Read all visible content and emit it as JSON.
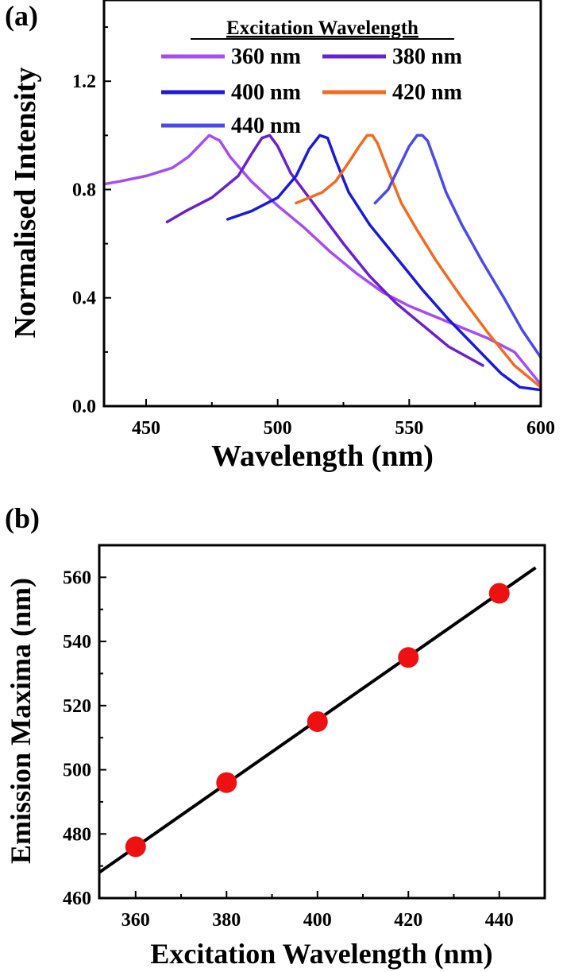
{
  "chart_data": [
    {
      "panel_label": "(a)",
      "type": "line",
      "xlabel": "Wavelength (nm)",
      "ylabel": "Normalised Intensity",
      "xlim": [
        434,
        600
      ],
      "ylim": [
        0.0,
        1.5
      ],
      "xticks": [
        "450",
        "500",
        "550",
        "600"
      ],
      "yticks": [
        "0.0",
        "0.4",
        "0.8",
        "1.2"
      ],
      "legend_title": "Excitation Wavelength",
      "series": [
        {
          "name": "360 nm",
          "color": "#a64df2",
          "x": [
            434,
            440,
            450,
            460,
            466,
            470,
            474,
            478,
            482,
            490,
            500,
            510,
            520,
            530,
            540,
            550,
            560,
            570,
            580,
            590,
            600
          ],
          "y": [
            0.82,
            0.83,
            0.85,
            0.88,
            0.92,
            0.96,
            1.0,
            0.98,
            0.92,
            0.83,
            0.74,
            0.66,
            0.57,
            0.49,
            0.42,
            0.37,
            0.33,
            0.29,
            0.25,
            0.2,
            0.08
          ]
        },
        {
          "name": "380 nm",
          "color": "#6a1fd0",
          "x": [
            458,
            465,
            475,
            485,
            490,
            494,
            497,
            500,
            505,
            515,
            525,
            535,
            545,
            555,
            565,
            578
          ],
          "y": [
            0.68,
            0.72,
            0.77,
            0.85,
            0.93,
            0.99,
            1.0,
            0.96,
            0.86,
            0.73,
            0.6,
            0.48,
            0.38,
            0.3,
            0.22,
            0.15
          ]
        },
        {
          "name": "400 nm",
          "color": "#1a1adb",
          "x": [
            481,
            490,
            500,
            507,
            512,
            516,
            519,
            522,
            527,
            535,
            545,
            555,
            565,
            575,
            585,
            592,
            600
          ],
          "y": [
            0.69,
            0.72,
            0.77,
            0.85,
            0.95,
            1.0,
            0.99,
            0.91,
            0.79,
            0.67,
            0.55,
            0.43,
            0.32,
            0.22,
            0.12,
            0.07,
            0.06
          ]
        },
        {
          "name": "420 nm",
          "color": "#f26b21",
          "x": [
            507,
            512,
            517,
            522,
            527,
            531,
            534,
            536,
            538,
            542,
            547,
            553,
            560,
            570,
            580,
            590,
            600
          ],
          "y": [
            0.75,
            0.77,
            0.79,
            0.83,
            0.9,
            0.96,
            1.0,
            1.0,
            0.97,
            0.87,
            0.75,
            0.65,
            0.54,
            0.4,
            0.27,
            0.15,
            0.07
          ]
        },
        {
          "name": "440 nm",
          "color": "#4a4aec",
          "x": [
            537,
            542,
            546,
            550,
            553,
            555,
            557,
            560,
            564,
            570,
            578,
            586,
            593,
            600
          ],
          "y": [
            0.75,
            0.8,
            0.88,
            0.96,
            1.0,
            1.0,
            0.98,
            0.9,
            0.79,
            0.67,
            0.53,
            0.4,
            0.28,
            0.18
          ]
        }
      ]
    },
    {
      "panel_label": "(b)",
      "type": "scatter",
      "xlabel": "Excitation Wavelength (nm)",
      "ylabel": "Emission Maxima (nm)",
      "xlim": [
        352,
        450
      ],
      "ylim": [
        460,
        570
      ],
      "xticks": [
        "360",
        "380",
        "400",
        "420",
        "440"
      ],
      "yticks": [
        "460",
        "480",
        "500",
        "520",
        "540",
        "560"
      ],
      "points": {
        "x": [
          360,
          380,
          400,
          420,
          440
        ],
        "y": [
          476,
          496,
          515,
          535,
          555
        ],
        "color": "#ee1111"
      },
      "fit_line": {
        "x": [
          352,
          448
        ],
        "y": [
          468,
          563
        ],
        "color": "#000000"
      }
    }
  ]
}
